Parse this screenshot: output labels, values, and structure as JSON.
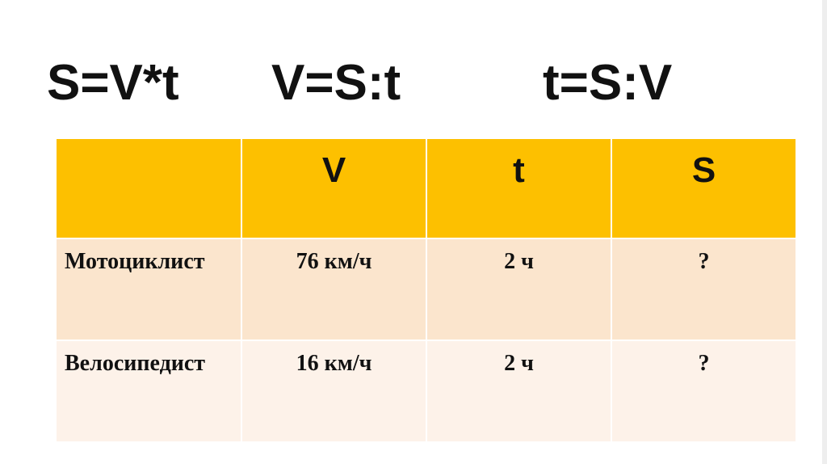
{
  "title": {
    "formulas": [
      "S=V*t",
      "V=S:t",
      "t=S:V"
    ]
  },
  "table": {
    "header": [
      "",
      "V",
      "t",
      "S"
    ],
    "rows": [
      [
        "Мотоциклист",
        "76 км/ч",
        "2 ч",
        "?"
      ],
      [
        "Велосипедист",
        "16 км/ч",
        "2 ч",
        "?"
      ]
    ]
  }
}
